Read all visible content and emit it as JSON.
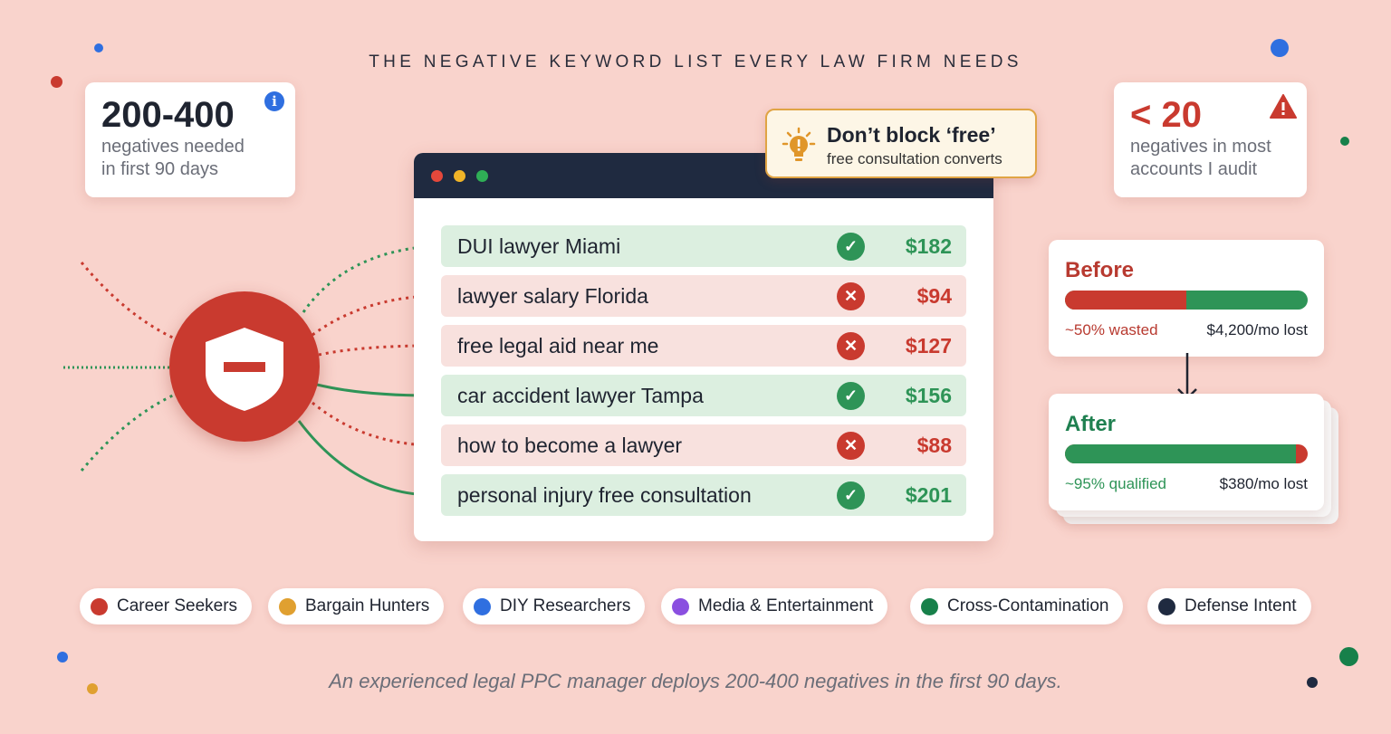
{
  "title": "THE NEGATIVE KEYWORD LIST EVERY LAW FIRM NEEDS",
  "left_stat": {
    "value": "200-400",
    "line1": "negatives needed",
    "line2": "in first 90 days",
    "icon": "info-icon"
  },
  "right_stat": {
    "value": "< 20",
    "line1": "negatives in most",
    "line2": "accounts I audit",
    "icon": "warning-icon"
  },
  "tip": {
    "title": "Don’t block ‘free’",
    "subtitle": "free consultation converts",
    "icon": "lightbulb-icon"
  },
  "keywords": [
    {
      "text": "DUI lawyer Miami",
      "status": "allowed",
      "price": "$182"
    },
    {
      "text": "lawyer salary Florida",
      "status": "blocked",
      "price": "$94"
    },
    {
      "text": "free legal aid near me",
      "status": "blocked",
      "price": "$127"
    },
    {
      "text": "car accident lawyer Tampa",
      "status": "allowed",
      "price": "$156"
    },
    {
      "text": "how to become a lawyer",
      "status": "blocked",
      "price": "$88"
    },
    {
      "text": "personal injury free consultation",
      "status": "allowed",
      "price": "$201"
    }
  ],
  "before": {
    "title": "Before",
    "wasted_pct": 50,
    "left_label": "~50% wasted",
    "right_label": "$4,200/mo lost"
  },
  "after": {
    "title": "After",
    "qualified_pct": 95,
    "left_label": "~95% qualified",
    "right_label": "$380/mo lost"
  },
  "categories": [
    {
      "label": "Career Seekers",
      "color": "#c93a2f"
    },
    {
      "label": "Bargain Hunters",
      "color": "#e0a030"
    },
    {
      "label": "DIY Researchers",
      "color": "#2f6fe0"
    },
    {
      "label": "Media & Entertainment",
      "color": "#8a4fe0"
    },
    {
      "label": "Cross-Contamination",
      "color": "#17804a"
    },
    {
      "label": "Defense Intent",
      "color": "#1f2a40"
    }
  ],
  "footer": "An experienced legal PPC manager deploys 200-400 negatives in the first 90 days.",
  "colors": {
    "background": "#f9d3cc",
    "red": "#c93a2f",
    "green": "#2e9457",
    "navy": "#1f2a40"
  }
}
